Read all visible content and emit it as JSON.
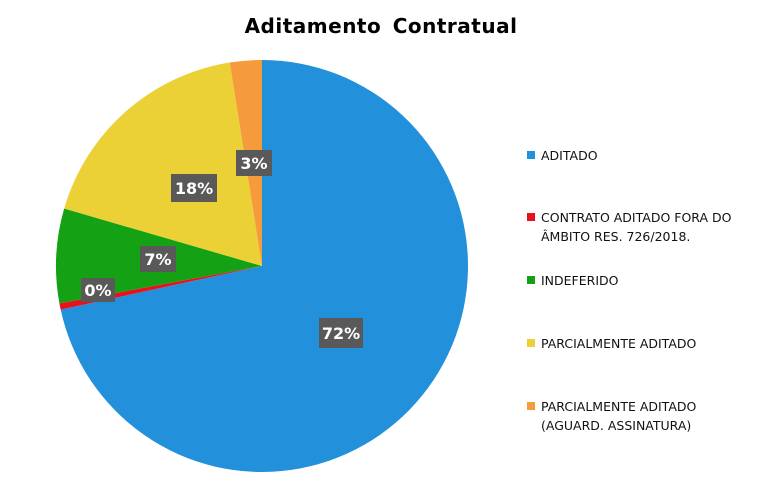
{
  "chart_data": {
    "type": "pie",
    "title": "Aditamento  Contratual",
    "categories": [
      "ADITADO",
      "CONTRATO ADITADO FORA DO ÂMBITO RES. 726/2018.",
      "INDEFERIDO",
      "PARCIALMENTE ADITADO",
      "PARCIALMENTE ADITADO (AGUARD. ASSINATURA)"
    ],
    "values": [
      71.6,
      0.5,
      7.4,
      18.0,
      2.5
    ],
    "data_labels": [
      "72%",
      "0%",
      "7%",
      "18%",
      "3%"
    ],
    "colors": [
      "#2290DA",
      "#E8121E",
      "#14A214",
      "#EBD136",
      "#F59B3C"
    ],
    "legend_position": "right",
    "start": "top, clockwise"
  }
}
